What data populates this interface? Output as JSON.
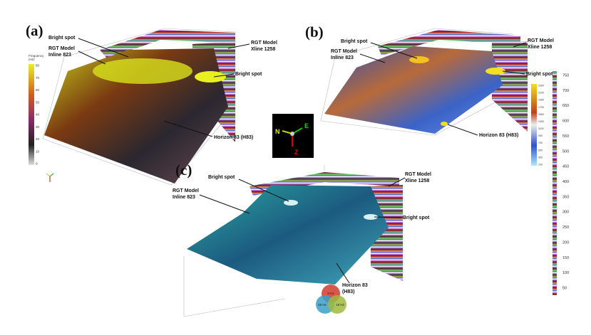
{
  "panels": [
    {
      "label": "(a)",
      "annotations": [
        [
          "Bright spot"
        ],
        [
          "RGT Model",
          "Inline 823"
        ],
        [
          "RGT Model",
          "Xline 1258"
        ],
        [
          "Bright spot"
        ],
        [
          "Horizon 83 (H83)"
        ]
      ],
      "colorbar": {
        "title": [
          "Frequency",
          "(Hz)"
        ],
        "ticks": [
          80,
          70,
          60,
          50,
          40,
          30,
          20,
          10,
          0
        ]
      }
    },
    {
      "label": "(b)",
      "annotations": [
        [
          "Bright spot"
        ],
        [
          "RGT Model",
          "Inline 823"
        ],
        [
          "RGT Model",
          "Xline 1258"
        ],
        [
          "Bright spot"
        ],
        [
          "Horizon 83 (H83)"
        ]
      ],
      "colorbar": {
        "ticks": [
          2300,
          2100,
          1900,
          1700,
          1500,
          1300,
          1100,
          900,
          700,
          500,
          300,
          100
        ]
      }
    },
    {
      "label": "(c)",
      "annotations": [
        [
          "Bright spot"
        ],
        [
          "RGT Model",
          "Inline 823"
        ],
        [
          "RGT Model",
          "Xline 1258"
        ],
        [
          "Bright spot"
        ],
        [
          "Horizon 83",
          "(H83)"
        ]
      ],
      "venn": [
        "8 Hz",
        "25 Hz",
        "18 Hz"
      ]
    }
  ],
  "compass": [
    "N",
    "E",
    "Z"
  ],
  "depth_scale": {
    "ticks": [
      750,
      700,
      650,
      600,
      550,
      500,
      450,
      400,
      350,
      300,
      250,
      200,
      150,
      100,
      50
    ]
  }
}
